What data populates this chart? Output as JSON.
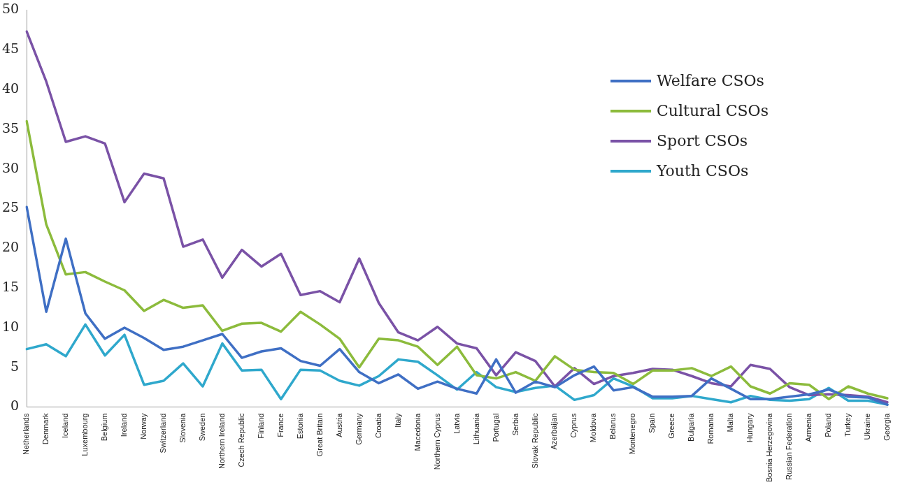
{
  "chart_data": {
    "type": "line",
    "categories": [
      "Netherlands",
      "Denmark",
      "Iceland",
      "Luxembourg",
      "Belgium",
      "Ireland",
      "Norway",
      "Switzerland",
      "Slovenia",
      "Sweden",
      "Northern Ireland",
      "Czech Republic",
      "Finland",
      "France",
      "Estonia",
      "Great Britain",
      "Austria",
      "Germany",
      "Croatia",
      "Italy",
      "Macedonia",
      "Northern Cyprus",
      "Latvia",
      "Lithuania",
      "Portugal",
      "Serbia",
      "Slovak Republic",
      "Azerbaijan",
      "Cyprus",
      "Moldova",
      "Belarus",
      "Montenegro",
      "Spain",
      "Greece",
      "Bulgaria",
      "Romania",
      "Malta",
      "Hungary",
      "Bosnia Herzegovina",
      "Russian Federation",
      "Armenia",
      "Poland",
      "Turkey",
      "Ukraine",
      "Georgia"
    ],
    "series": [
      {
        "name": "Welfare CSOs",
        "color": "#3f6fc4",
        "values": [
          25.2,
          12,
          21.2,
          11.8,
          8.6,
          10,
          8.7,
          7.2,
          7.6,
          8.4,
          9.2,
          6.2,
          7,
          7.4,
          5.8,
          5.2,
          7.3,
          4.4,
          3,
          4.1,
          2.3,
          3.2,
          2.3,
          1.7,
          6,
          1.8,
          3.2,
          2.5,
          4,
          5.1,
          2.1,
          2.5,
          1.3,
          1.3,
          1.4,
          3.6,
          2.3,
          1,
          1,
          1.3,
          1.6,
          2.2,
          1.3,
          1.2,
          0.3
        ]
      },
      {
        "name": "Cultural CSOs",
        "color": "#8cbb3c",
        "values": [
          36,
          23,
          16.7,
          17,
          15.8,
          14.7,
          12.1,
          13.5,
          12.5,
          12.8,
          9.6,
          10.5,
          10.6,
          9.5,
          12,
          10.4,
          8.6,
          5,
          8.6,
          8.4,
          7.6,
          5.3,
          7.6,
          4,
          3.6,
          4.4,
          3.3,
          6.4,
          4.7,
          4.4,
          4.3,
          2.9,
          4.6,
          4.6,
          4.9,
          3.9,
          5.1,
          2.6,
          1.7,
          3,
          2.8,
          1,
          2.6,
          1.7,
          1.1
        ]
      },
      {
        "name": "Sport CSOs",
        "color": "#7a52a6",
        "values": [
          47.3,
          41,
          33.4,
          34.1,
          33.2,
          25.8,
          29.4,
          28.8,
          20.2,
          21.1,
          16.3,
          19.8,
          17.7,
          19.3,
          14.1,
          14.6,
          13.2,
          18.7,
          13.1,
          9.4,
          8.4,
          10.1,
          8,
          7.4,
          4,
          6.9,
          5.8,
          2.6,
          4.9,
          2.9,
          3.9,
          4.3,
          4.8,
          4.7,
          3.9,
          3,
          2.6,
          5.3,
          4.8,
          2.5,
          1.5,
          1.6,
          1.5,
          1.3,
          0.6
        ]
      },
      {
        "name": "Youth CSOs",
        "color": "#2fa8cc",
        "values": [
          7.3,
          7.9,
          6.4,
          10.4,
          6.5,
          9.1,
          2.8,
          3.3,
          5.5,
          2.6,
          8,
          4.6,
          4.7,
          1,
          4.7,
          4.6,
          3.3,
          2.7,
          3.9,
          6,
          5.7,
          4,
          2.2,
          4.4,
          2.5,
          1.9,
          2.4,
          2.7,
          0.9,
          1.5,
          3.6,
          2.6,
          1.1,
          1.1,
          1.4,
          1,
          0.6,
          1.4,
          0.9,
          0.8,
          1,
          2.4,
          0.8,
          0.8,
          0.3
        ]
      }
    ],
    "ylim": [
      0,
      50
    ],
    "yticks": [
      0,
      5,
      10,
      15,
      20,
      25,
      30,
      35,
      40,
      45,
      50
    ],
    "grid": false,
    "legend": "top right",
    "marker": "none",
    "line_style": "solid"
  }
}
